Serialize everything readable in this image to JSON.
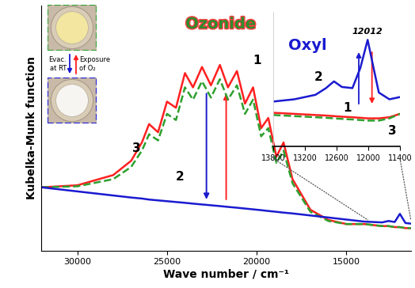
{
  "chart_data": [
    {
      "type": "line",
      "x_label": "Wave number / cm⁻¹",
      "y_label": "Kubelka-Munk function",
      "x": [
        32000,
        30000,
        28000,
        27000,
        26400,
        26000,
        25500,
        25000,
        24500,
        24000,
        23550,
        23050,
        22550,
        22050,
        21600,
        21100,
        20650,
        20200,
        19750,
        19350,
        18900,
        18500,
        18000,
        17000,
        16000,
        15000,
        14000,
        13500,
        13000,
        12650,
        12300,
        12012,
        11700,
        11400
      ],
      "xlim": [
        32000,
        11400
      ],
      "xticks": [
        30000,
        25000,
        20000,
        15000
      ],
      "ylim": [
        0,
        120
      ],
      "yticks": [],
      "tick_labels": "x",
      "series": [
        {
          "name": "1",
          "color": "#ff2020",
          "line_style": "solid",
          "values": [
            31,
            32,
            37,
            44,
            53,
            62,
            58,
            73,
            70,
            87,
            80,
            90,
            81,
            91,
            80,
            88,
            72,
            80,
            60,
            65,
            46,
            53,
            35,
            20,
            15,
            13,
            13,
            12.5,
            12,
            12,
            11.5,
            11.5,
            11,
            11
          ]
        },
        {
          "name": "3",
          "color": "#2ea02e",
          "line_style": "dashed",
          "values": [
            31,
            31.5,
            35,
            41,
            49,
            57,
            54,
            67,
            64,
            80,
            74,
            83,
            75,
            84,
            74,
            81,
            67,
            74,
            56,
            60,
            43,
            49,
            33,
            19,
            14.5,
            13,
            13,
            12.5,
            12,
            12,
            11.5,
            11.5,
            11,
            11
          ]
        },
        {
          "name": "2",
          "color": "#1a1ad0",
          "line_style": "solid",
          "values": [
            31,
            29,
            27,
            26,
            25.5,
            25,
            24.6,
            24.2,
            23.8,
            23.4,
            23,
            22.6,
            22.2,
            21.8,
            21.4,
            21,
            20.6,
            20.2,
            19.8,
            19.4,
            19,
            18.6,
            18.2,
            17.2,
            16.2,
            15.2,
            14.2,
            14,
            13.8,
            14.5,
            14,
            18,
            13.5,
            13.2
          ]
        }
      ],
      "annotations": [
        "Ozonide",
        "Evac.\nat RT",
        "Exposure\nof O₂"
      ]
    },
    {
      "type": "line",
      "x": [
        13800,
        13600,
        13400,
        13200,
        13000,
        12800,
        12650,
        12500,
        12300,
        12150,
        12012,
        11900,
        11800,
        11600,
        11400
      ],
      "xlim": [
        13800,
        11400
      ],
      "xticks": [
        13800,
        13200,
        12600,
        12000,
        11400
      ],
      "ylim": [
        0,
        120
      ],
      "yticks": [],
      "tick_labels": "x",
      "series": [
        {
          "name": "1",
          "color": "#ff2020",
          "line_style": "solid",
          "values": [
            30,
            29.5,
            29,
            28.5,
            28,
            27.5,
            27,
            26.5,
            26,
            25.5,
            25,
            25,
            25,
            26,
            29
          ]
        },
        {
          "name": "3",
          "color": "#2ea02e",
          "line_style": "dashed",
          "values": [
            28,
            27.5,
            27,
            26.5,
            26,
            25.5,
            25,
            24.5,
            24,
            23.5,
            23,
            23,
            23,
            25,
            29
          ]
        },
        {
          "name": "2",
          "color": "#1a1ad0",
          "line_style": "solid",
          "values": [
            40,
            41,
            42,
            44,
            46,
            52,
            58,
            53,
            52,
            70,
            95,
            70,
            48,
            42,
            44
          ]
        }
      ],
      "annotations": [
        "Oxyl",
        {
          "value": 12012,
          "label": "12012"
        }
      ]
    }
  ]
}
